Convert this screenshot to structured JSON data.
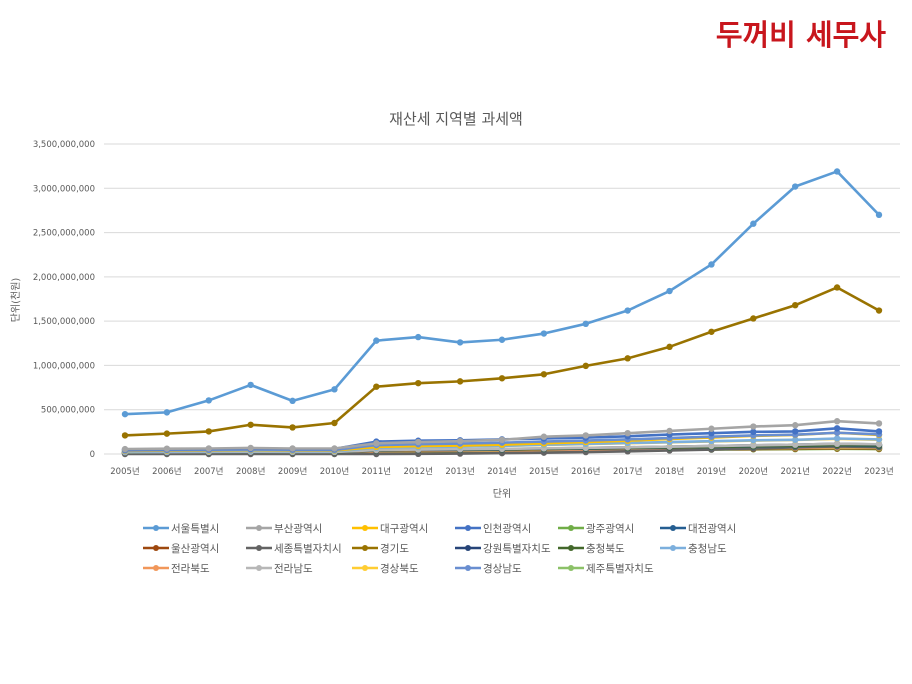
{
  "brand": {
    "text": "두꺼비 세무사",
    "color": "#c8161d"
  },
  "chart_data": {
    "type": "line",
    "title": "재산세 지역별 과세액",
    "xlabel": "단위",
    "ylabel": "단위(천원)",
    "ylim": [
      0,
      3500000000
    ],
    "yticks": [
      0,
      500000000,
      1000000000,
      1500000000,
      2000000000,
      2500000000,
      3000000000,
      3500000000
    ],
    "ytick_labels": [
      "0",
      "500,000,000",
      "1,000,000,000",
      "1,500,000,000",
      "2,000,000,000",
      "2,500,000,000",
      "3,000,000,000",
      "3,500,000,000"
    ],
    "grid": true,
    "legend_position": "bottom",
    "categories": [
      "2005년",
      "2006년",
      "2007년",
      "2008년",
      "2009년",
      "2010년",
      "2011년",
      "2012년",
      "2013년",
      "2014년",
      "2015년",
      "2016년",
      "2017년",
      "2018년",
      "2019년",
      "2020년",
      "2021년",
      "2022년",
      "2023년"
    ],
    "series": [
      {
        "name": "서울특별시",
        "color": "#5b9bd5",
        "values": [
          450000000,
          470000000,
          605000000,
          780000000,
          600000000,
          730000000,
          1280000000,
          1320000000,
          1260000000,
          1290000000,
          1360000000,
          1470000000,
          1620000000,
          1840000000,
          2140000000,
          2600000000,
          3020000000,
          3190000000,
          2700000000
        ]
      },
      {
        "name": "부산광역시",
        "color": "#a5a5a5",
        "values": [
          55000000,
          60000000,
          62000000,
          68000000,
          62000000,
          62000000,
          120000000,
          135000000,
          145000000,
          160000000,
          195000000,
          210000000,
          235000000,
          260000000,
          285000000,
          310000000,
          325000000,
          370000000,
          345000000
        ]
      },
      {
        "name": "대구광역시",
        "color": "#ffc000",
        "values": [
          35000000,
          38000000,
          40000000,
          45000000,
          40000000,
          40000000,
          80000000,
          90000000,
          95000000,
          105000000,
          120000000,
          135000000,
          150000000,
          170000000,
          185000000,
          205000000,
          215000000,
          240000000,
          215000000
        ]
      },
      {
        "name": "인천광역시",
        "color": "#4472c4",
        "values": [
          50000000,
          55000000,
          58000000,
          62000000,
          58000000,
          58000000,
          140000000,
          150000000,
          155000000,
          165000000,
          175000000,
          185000000,
          200000000,
          220000000,
          235000000,
          250000000,
          255000000,
          290000000,
          255000000
        ]
      },
      {
        "name": "광주광역시",
        "color": "#70ad47",
        "values": [
          15000000,
          16000000,
          17000000,
          19000000,
          17000000,
          17000000,
          30000000,
          33000000,
          35000000,
          38000000,
          42000000,
          46000000,
          50000000,
          55000000,
          58000000,
          62000000,
          65000000,
          70000000,
          65000000
        ]
      },
      {
        "name": "대전광역시",
        "color": "#255e91",
        "values": [
          18000000,
          20000000,
          21000000,
          23000000,
          21000000,
          21000000,
          40000000,
          44000000,
          46000000,
          50000000,
          55000000,
          60000000,
          66000000,
          72000000,
          78000000,
          85000000,
          90000000,
          100000000,
          90000000
        ]
      },
      {
        "name": "울산광역시",
        "color": "#9e480e",
        "values": [
          12000000,
          13000000,
          14000000,
          16000000,
          14000000,
          14000000,
          28000000,
          31000000,
          33000000,
          36000000,
          40000000,
          44000000,
          47000000,
          50000000,
          53000000,
          56000000,
          58000000,
          62000000,
          58000000
        ]
      },
      {
        "name": "세종특별자치시",
        "color": "#636363",
        "values": [
          0,
          0,
          0,
          0,
          0,
          0,
          0,
          2000000,
          5000000,
          10000000,
          15000000,
          22000000,
          30000000,
          40000000,
          50000000,
          62000000,
          75000000,
          85000000,
          78000000
        ]
      },
      {
        "name": "경기도",
        "color": "#997300",
        "values": [
          210000000,
          230000000,
          255000000,
          330000000,
          300000000,
          350000000,
          760000000,
          800000000,
          820000000,
          855000000,
          900000000,
          995000000,
          1080000000,
          1210000000,
          1380000000,
          1530000000,
          1680000000,
          1880000000,
          1620000000
        ]
      },
      {
        "name": "강원특별자치도",
        "color": "#264478",
        "values": [
          20000000,
          22000000,
          23000000,
          25000000,
          23000000,
          23000000,
          45000000,
          48000000,
          52000000,
          56000000,
          62000000,
          68000000,
          75000000,
          82000000,
          90000000,
          98000000,
          105000000,
          115000000,
          108000000
        ]
      },
      {
        "name": "충청북도",
        "color": "#43682b",
        "values": [
          18000000,
          20000000,
          21000000,
          23000000,
          21000000,
          21000000,
          40000000,
          44000000,
          47000000,
          51000000,
          56000000,
          62000000,
          68000000,
          74000000,
          80000000,
          88000000,
          93000000,
          102000000,
          96000000
        ]
      },
      {
        "name": "충청남도",
        "color": "#7cafdd",
        "values": [
          28000000,
          30000000,
          32000000,
          35000000,
          32000000,
          32000000,
          70000000,
          78000000,
          84000000,
          92000000,
          105000000,
          115000000,
          125000000,
          135000000,
          145000000,
          155000000,
          160000000,
          175000000,
          165000000
        ]
      },
      {
        "name": "전라북도",
        "color": "#f1975a",
        "values": [
          15000000,
          16000000,
          17000000,
          19000000,
          17000000,
          17000000,
          32000000,
          35000000,
          38000000,
          41000000,
          45000000,
          49000000,
          53000000,
          57000000,
          61000000,
          66000000,
          70000000,
          76000000,
          72000000
        ]
      },
      {
        "name": "전라남도",
        "color": "#b7b7b7",
        "values": [
          20000000,
          22000000,
          23000000,
          25000000,
          23000000,
          23000000,
          45000000,
          50000000,
          54000000,
          58000000,
          64000000,
          70000000,
          76000000,
          83000000,
          90000000,
          98000000,
          105000000,
          115000000,
          110000000
        ]
      },
      {
        "name": "경상북도",
        "color": "#ffcd33",
        "values": [
          30000000,
          32000000,
          34000000,
          38000000,
          34000000,
          34000000,
          70000000,
          78000000,
          85000000,
          92000000,
          102000000,
          112000000,
          122000000,
          132000000,
          142000000,
          152000000,
          158000000,
          172000000,
          162000000
        ]
      },
      {
        "name": "경상남도",
        "color": "#698ed0",
        "values": [
          40000000,
          44000000,
          46000000,
          50000000,
          46000000,
          46000000,
          100000000,
          110000000,
          118000000,
          128000000,
          140000000,
          152000000,
          165000000,
          180000000,
          195000000,
          210000000,
          218000000,
          240000000,
          222000000
        ]
      },
      {
        "name": "제주특별자치도",
        "color": "#8cc168",
        "values": [
          8000000,
          9000000,
          10000000,
          12000000,
          10000000,
          10000000,
          22000000,
          25000000,
          28000000,
          31000000,
          36000000,
          42000000,
          46000000,
          48000000,
          50000000,
          52000000,
          54000000,
          58000000,
          55000000
        ]
      }
    ]
  }
}
